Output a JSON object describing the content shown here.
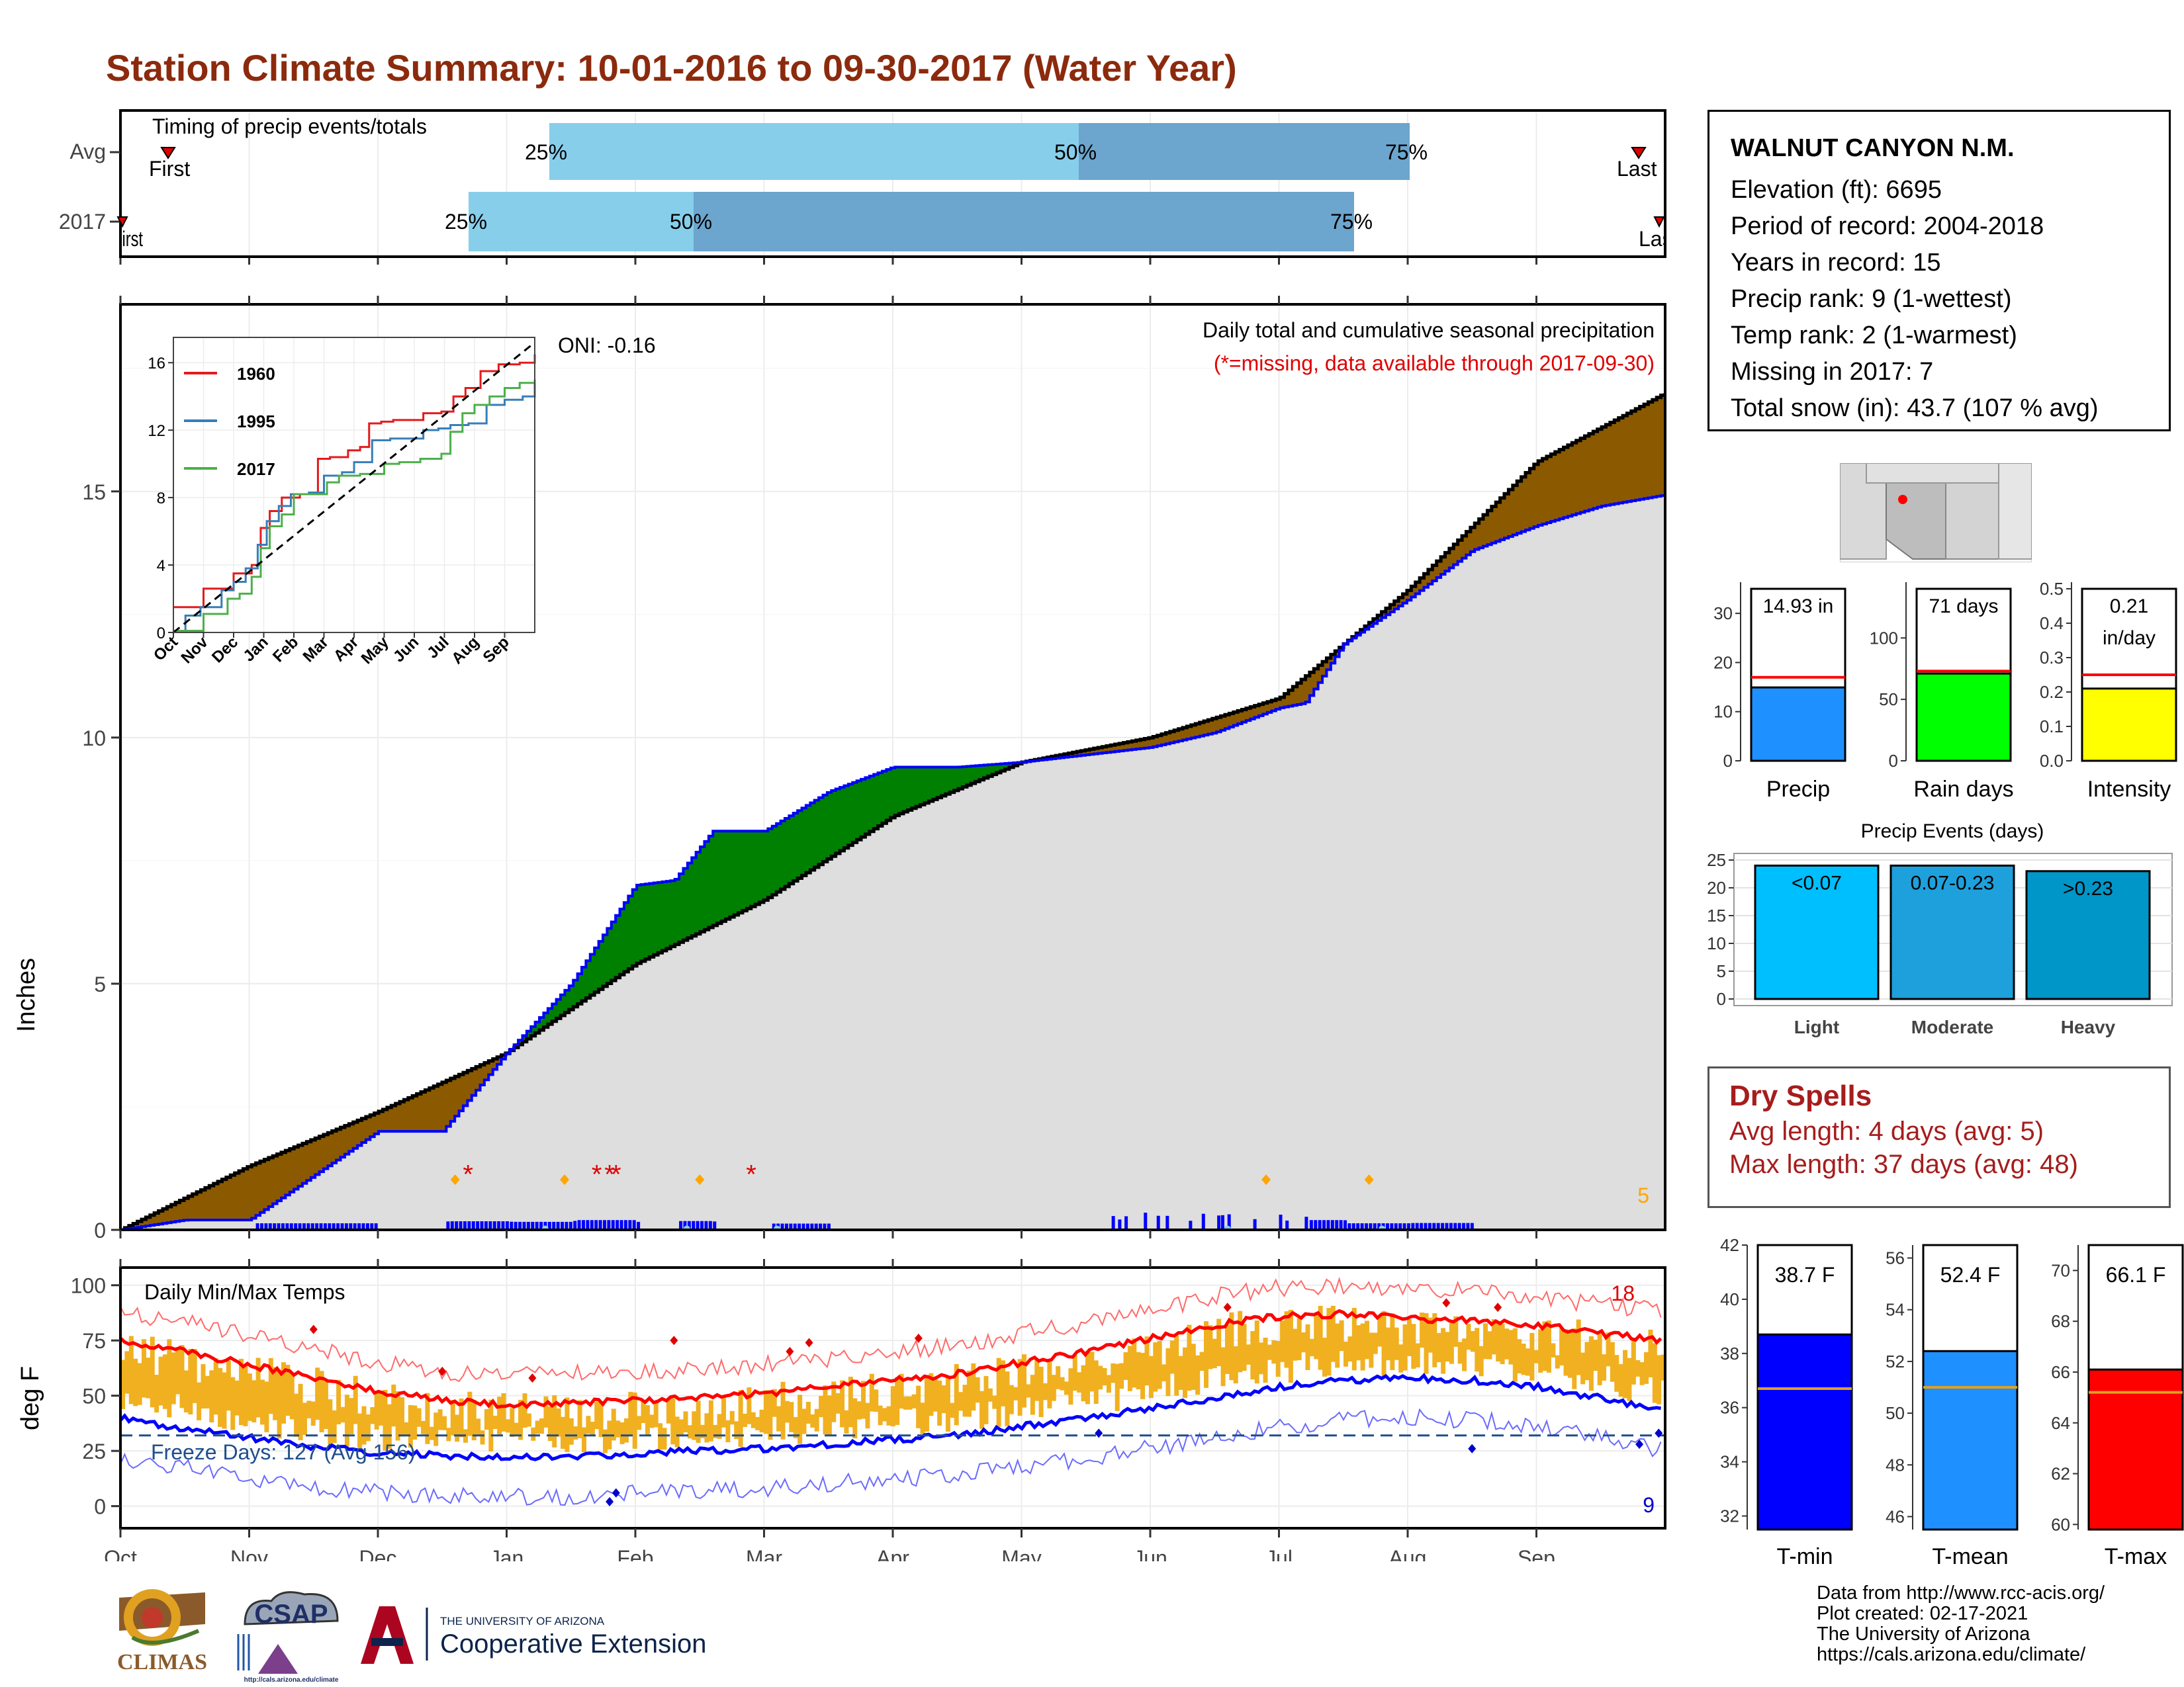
{
  "title": "Station Climate Summary: 10-01-2016 to 09-30-2017 (Water Year)",
  "timing_panel": {
    "label": "Timing of precip events/totals",
    "rows": [
      "Avg",
      "2017"
    ],
    "avg": {
      "first_label": "First",
      "last_label": "Last",
      "p25": "25%",
      "p50": "50%",
      "p75": "75%"
    },
    "y2017": {
      "first_label": "First",
      "last_label": "Last",
      "p25": "25%",
      "p50": "50%",
      "p75": "75%"
    }
  },
  "main_panel": {
    "ylabel": "Inches",
    "oni": "ONI: -0.16",
    "subtitle": "Daily total and cumulative seasonal precipitation",
    "note": "(*=missing, data available through 2017-09-30)",
    "corner_value": "5",
    "yticks": [
      "0",
      "5",
      "10",
      "15"
    ]
  },
  "inset": {
    "yticks": [
      "0",
      "4",
      "8",
      "12",
      "16"
    ],
    "xticks": [
      "Oct",
      "Nov",
      "Dec",
      "Jan",
      "Feb",
      "Mar",
      "Apr",
      "May",
      "Jun",
      "Jul",
      "Aug",
      "Sep"
    ],
    "legend": [
      "1960",
      "1995",
      "2017"
    ]
  },
  "temp_panel": {
    "ylabel": "deg F",
    "label": "Daily Min/Max Temps",
    "freeze_text": "Freeze Days: 127 (Avg 156)",
    "hot_count": "18",
    "cold_count": "9",
    "yticks": [
      "0",
      "25",
      "50",
      "75",
      "100"
    ]
  },
  "months": [
    "Oct",
    "Nov",
    "Dec",
    "Jan",
    "Feb",
    "Mar",
    "Apr",
    "May",
    "Jun",
    "Jul",
    "Aug",
    "Sep"
  ],
  "station": {
    "name": "WALNUT CANYON N.M.",
    "lines": [
      "Elevation (ft): 6695",
      "Period of record: 2004-2018",
      "Years in record: 15",
      "Precip rank: 9 (1-wettest)",
      "Temp rank: 2 (1-warmest)",
      "Missing in 2017: 7",
      "Total snow (in): 43.7 (107 % avg)"
    ]
  },
  "mini_bars": [
    {
      "label": "Precip",
      "value_text": "14.93 in",
      "value": 14.93,
      "avg": 17.0,
      "max": 35,
      "ticks": [
        "0",
        "10",
        "20",
        "30"
      ],
      "color": "#1e90ff"
    },
    {
      "label": "Rain days",
      "value_text": "71 days",
      "value": 71,
      "avg": 73,
      "max": 140,
      "ticks": [
        "0",
        "50",
        "100"
      ],
      "color": "#00ff00"
    },
    {
      "label": "Intensity",
      "value_text": "0.21",
      "value_text2": "in/day",
      "value": 0.21,
      "avg": 0.25,
      "max": 0.5,
      "ticks": [
        "0.0",
        "0.1",
        "0.2",
        "0.3",
        "0.4",
        "0.5"
      ],
      "color": "#ffff00"
    }
  ],
  "precip_events": {
    "title": "Precip Events (days)",
    "ticks": [
      "0",
      "5",
      "10",
      "15",
      "20",
      "25"
    ],
    "bars": [
      {
        "cat": "Light",
        "label": "<0.07",
        "value": 24,
        "color": "#00bfff"
      },
      {
        "cat": "Moderate",
        "label": "0.07-0.23",
        "value": 24,
        "color": "#1ea0dc"
      },
      {
        "cat": "Heavy",
        "label": ">0.23",
        "value": 23,
        "color": "#0096c8"
      }
    ]
  },
  "dry_spells": {
    "title": "Dry Spells",
    "avg": "Avg length: 4 days (avg: 5)",
    "max": "Max length: 37 days (avg: 48)"
  },
  "temp_bars": [
    {
      "label": "T-min",
      "value_text": "38.7 F",
      "value": 38.7,
      "avg": 36.7,
      "lo": 31.5,
      "hi": 42,
      "ticks": [
        "32",
        "34",
        "36",
        "38",
        "40",
        "42"
      ],
      "tickvals": [
        32,
        34,
        36,
        38,
        40,
        42
      ],
      "color": "#0000ff"
    },
    {
      "label": "T-mean",
      "value_text": "52.4 F",
      "value": 52.4,
      "avg": 51.0,
      "lo": 45.5,
      "hi": 56.5,
      "ticks": [
        "46",
        "48",
        "50",
        "52",
        "54",
        "56"
      ],
      "tickvals": [
        46,
        48,
        50,
        52,
        54,
        56
      ],
      "color": "#1e90ff"
    },
    {
      "label": "T-max",
      "value_text": "66.1 F",
      "value": 66.1,
      "avg": 65.2,
      "lo": 59.8,
      "hi": 71,
      "ticks": [
        "60",
        "62",
        "64",
        "66",
        "68",
        "70"
      ],
      "tickvals": [
        60,
        62,
        64,
        66,
        68,
        70
      ],
      "color": "#ff0000"
    }
  ],
  "credits": [
    "Data from http://www.rcc-acis.org/",
    "Plot created: 02-17-2021",
    "The University of Arizona",
    "https://cals.arizona.edu/climate/"
  ],
  "logos": {
    "climas": "CLIMAS",
    "csap": "CSAP",
    "csap_url": "http://cals.arizona.edu/climate",
    "ua_small": "THE UNIVERSITY OF ARIZONA",
    "ua_big": "Cooperative Extension"
  },
  "chart_data": [
    {
      "type": "area",
      "title": "Daily total and cumulative seasonal precipitation",
      "ylabel": "Inches",
      "ylim": [
        0,
        18.8
      ],
      "series": [
        {
          "name": "2017",
          "x_months": [
            0,
            0.5,
            1,
            2,
            2.5,
            3,
            3.5,
            4,
            4.3,
            4.6,
            5,
            5.5,
            6,
            6.5,
            7,
            8,
            8.5,
            9,
            9.2,
            9.5,
            10,
            10.5,
            11,
            11.5,
            12
          ],
          "values": [
            0,
            0.2,
            0.2,
            2.0,
            2.0,
            3.6,
            5.0,
            7.0,
            7.1,
            8.1,
            8.1,
            8.9,
            9.4,
            9.4,
            9.5,
            9.8,
            10.1,
            10.6,
            10.7,
            11.9,
            12.8,
            13.8,
            14.3,
            14.7,
            14.93
          ]
        },
        {
          "x_months": [
            0,
            1,
            2,
            3,
            4,
            5,
            6,
            7,
            8,
            9,
            10,
            11,
            12
          ],
          "values": [
            0,
            1.3,
            2.4,
            3.6,
            5.4,
            6.7,
            8.4,
            9.5,
            10.0,
            10.8,
            13.0,
            15.6,
            17.0
          ]
        }
      ]
    },
    {
      "type": "line",
      "title": "Daily Min/Max Temps",
      "ylabel": "deg F",
      "ylim": [
        -10,
        108
      ],
      "x_months": [
        0,
        0.5,
        1,
        1.5,
        2,
        2.5,
        3,
        3.5,
        4,
        4.5,
        5,
        5.5,
        6,
        6.5,
        7,
        7.5,
        8,
        8.5,
        9,
        9.5,
        10,
        10.5,
        11,
        11.5,
        12
      ],
      "series": [
        {
          "values": [
            75,
            70,
            64,
            58,
            52,
            48,
            46,
            47,
            48,
            49,
            51,
            54,
            57,
            60,
            65,
            70,
            76,
            82,
            86,
            87,
            85,
            84,
            82,
            78,
            75
          ]
        },
        {
          "values": [
            40,
            35,
            31,
            27,
            24,
            23,
            22,
            22,
            24,
            25,
            26,
            28,
            30,
            32,
            36,
            40,
            44,
            49,
            54,
            57,
            58,
            57,
            54,
            49,
            43
          ]
        }
      ]
    }
  ]
}
